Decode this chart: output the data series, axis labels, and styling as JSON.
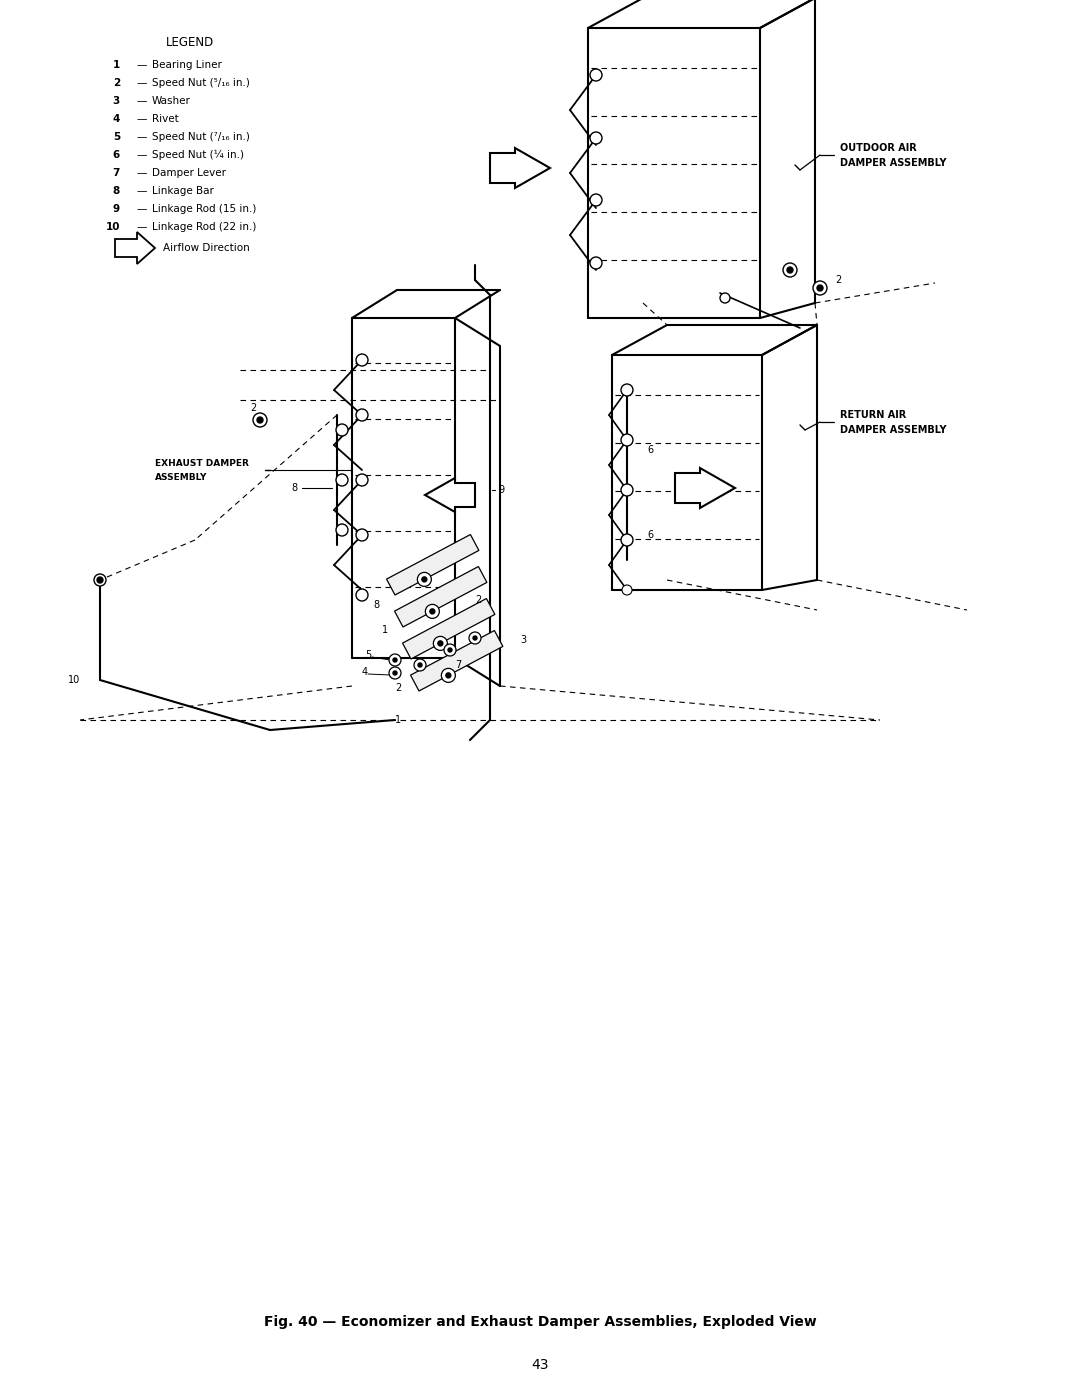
{
  "title": "Fig. 40 — Economizer and Exhaust Damper Assemblies, Exploded View",
  "page_number": "43",
  "background_color": "#ffffff",
  "legend_title": "LEGEND",
  "legend_items": [
    {
      "num": "1",
      "text": "Bearing Liner"
    },
    {
      "num": "2",
      "text": "Speed Nut (⁵/₁₆ in.)"
    },
    {
      "num": "3",
      "text": "Washer"
    },
    {
      "num": "4",
      "text": "Rivet"
    },
    {
      "num": "5",
      "text": "Speed Nut (⁷/₁₆ in.)"
    },
    {
      "num": "6",
      "text": "Speed Nut (¼ in.)"
    },
    {
      "num": "7",
      "text": "Damper Lever"
    },
    {
      "num": "8",
      "text": "Linkage Bar"
    },
    {
      "num": "9",
      "text": "Linkage Rod (15 in.)"
    },
    {
      "num": "10",
      "text": "Linkage Rod (22 in.)"
    }
  ],
  "airflow_label": "Airflow Direction",
  "fig_width": 10.8,
  "fig_height": 13.97
}
